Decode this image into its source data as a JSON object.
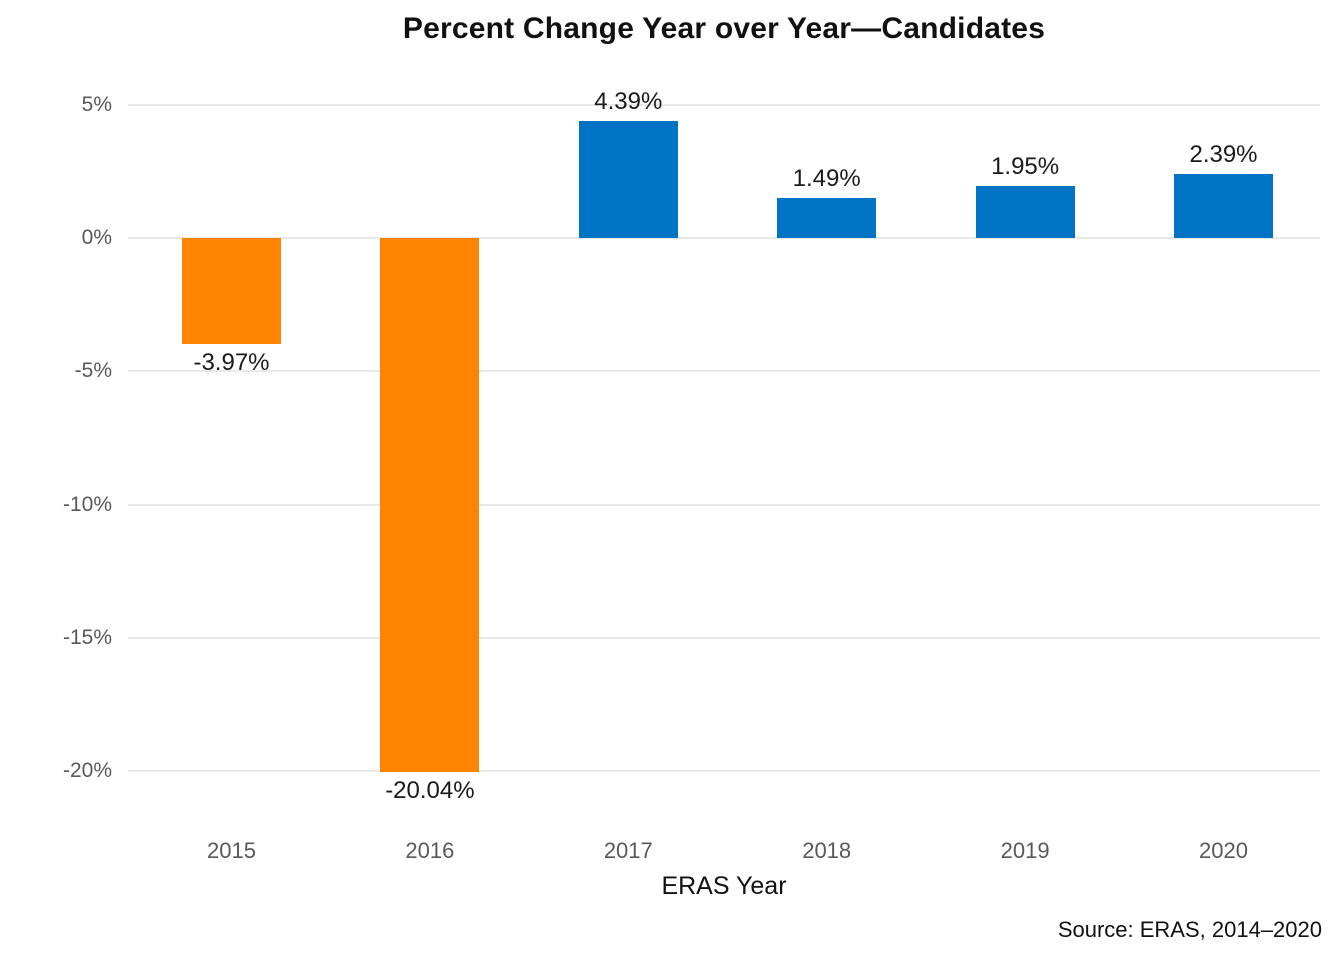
{
  "chart_data": {
    "type": "bar",
    "title": "Percent Change Year over Year—Candidates",
    "xlabel": "ERAS Year",
    "ylabel": "",
    "categories": [
      "2015",
      "2016",
      "2017",
      "2018",
      "2019",
      "2020"
    ],
    "values": [
      -3.97,
      -20.04,
      4.39,
      1.49,
      1.95,
      2.39
    ],
    "data_labels": [
      "-3.97%",
      "-20.04%",
      "4.39%",
      "1.49%",
      "1.95%",
      "2.39%"
    ],
    "yticks": [
      {
        "value": 5,
        "label": "5%"
      },
      {
        "value": 0,
        "label": "0%"
      },
      {
        "value": -5,
        "label": "-5%"
      },
      {
        "value": -10,
        "label": "-10%"
      },
      {
        "value": -15,
        "label": "-15%"
      },
      {
        "value": -20,
        "label": "-20%"
      }
    ],
    "ylim": [
      -21.5,
      6
    ],
    "grid": true,
    "legend": "none",
    "colors": {
      "positive_bar": "#0074c4",
      "negative_bar": "#ff8400",
      "gridline": "#e8e8e8",
      "tick_text": "#595959",
      "label_text": "#1a1a1a"
    }
  },
  "source": "Source: ERAS, 2014–2020"
}
